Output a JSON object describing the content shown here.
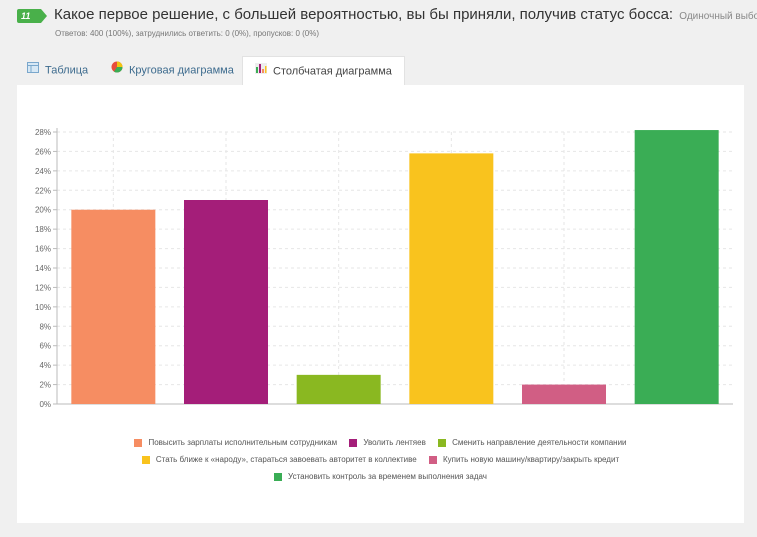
{
  "question": {
    "number": "11",
    "title": "Какое первое решение, с большей вероятностью, вы бы приняли, получив статус босса:",
    "type": "Одиночный выбор",
    "stats": "Ответов: 400 (100%), затруднились ответить: 0 (0%), пропусков: 0 (0%)"
  },
  "tabs": [
    {
      "label": "Таблица",
      "icon": "table-icon"
    },
    {
      "label": "Круговая диаграмма",
      "icon": "pie-chart-icon"
    },
    {
      "label": "Столбчатая диаграмма",
      "icon": "bar-chart-icon",
      "active": true
    }
  ],
  "chart_data": {
    "type": "bar",
    "categories": [
      "Повысить зарплаты исполнительным сотрудникам",
      "Уволить лентяев",
      "Сменить направление деятельности компании",
      "Стать ближе к «народу», стараться завоевать авторитет в коллективе",
      "Купить новую машину/квартиру/закрыть кредит",
      "Установить контроль за временем выполнения задач"
    ],
    "values": [
      20.0,
      21.0,
      3.0,
      25.8,
      2.0,
      28.2
    ],
    "colors": [
      "#f68d62",
      "#a41e79",
      "#8ab821",
      "#f9c31e",
      "#d15e84",
      "#3aad55"
    ],
    "ylim": [
      0,
      28
    ],
    "yticks": [
      "0%",
      "2%",
      "4%",
      "6%",
      "8%",
      "10%",
      "12%",
      "14%",
      "16%",
      "18%",
      "20%",
      "22%",
      "24%",
      "26%",
      "28%"
    ],
    "grid": true,
    "legend_position": "bottom"
  }
}
